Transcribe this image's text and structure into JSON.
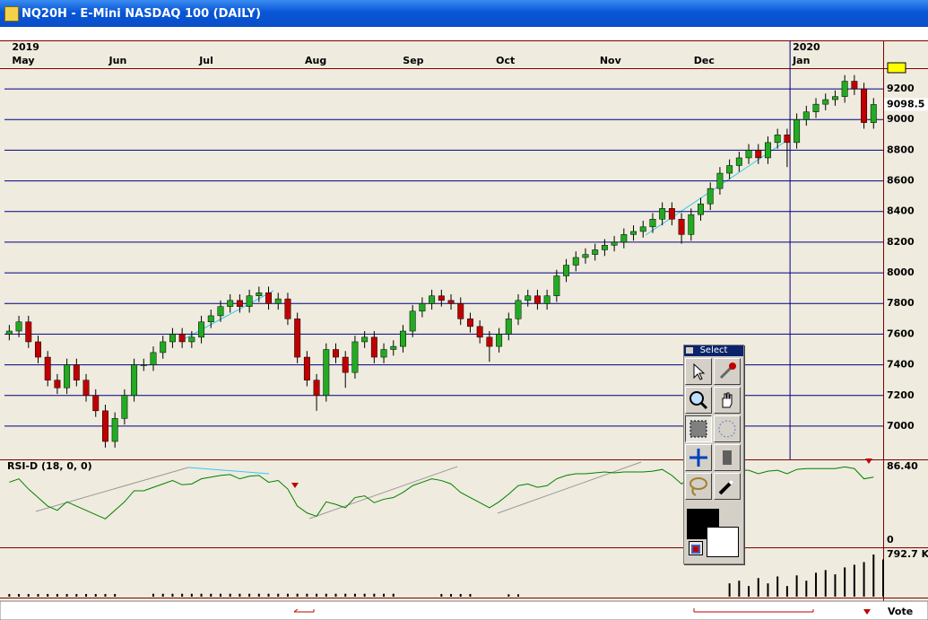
{
  "window": {
    "title": "NQ20H - E-Mini NASDAQ 100 (DAILY)"
  },
  "toolbox": {
    "title": "Select"
  },
  "status_bar": {
    "label": "Vote"
  },
  "chart_data": [
    {
      "type": "candlestick",
      "up_color": "#22aa22",
      "down_color": "#c00000",
      "grid": true,
      "grid_color": "#000080",
      "xlim": [
        -0.5,
        91
      ],
      "xticks": [
        {
          "value": 0,
          "label": "May"
        },
        {
          "value": 10.1,
          "label": "Jun"
        },
        {
          "value": 19.5,
          "label": "Jul"
        },
        {
          "value": 30.5,
          "label": "Aug"
        },
        {
          "value": 40.7,
          "label": "Sep"
        },
        {
          "value": 50.4,
          "label": "Oct"
        },
        {
          "value": 61.2,
          "label": "Nov"
        },
        {
          "value": 71,
          "label": "Dec"
        },
        {
          "value": 81.3,
          "label": "Jan"
        }
      ],
      "year_ticks": [
        {
          "value": 0,
          "label": "2019"
        },
        {
          "value": 81.3,
          "label": "2020"
        }
      ],
      "ylim": [
        6783,
        9335
      ],
      "yticks": [
        7000,
        7200,
        7400,
        7600,
        7800,
        8000,
        8200,
        8400,
        8600,
        8800,
        9000,
        9200
      ],
      "open": [
        7600,
        7620,
        7680,
        7550,
        7450,
        7300,
        7250,
        7400,
        7300,
        7200,
        7100,
        6900,
        7050,
        7200,
        7400,
        7400,
        7480,
        7550,
        7600,
        7550,
        7580,
        7680,
        7720,
        7780,
        7820,
        7780,
        7850,
        7870,
        7800,
        7830,
        7700,
        7450,
        7300,
        7200,
        7500,
        7450,
        7350,
        7550,
        7580,
        7450,
        7500,
        7520,
        7620,
        7750,
        7800,
        7850,
        7820,
        7800,
        7700,
        7650,
        7580,
        7520,
        7600,
        7700,
        7820,
        7850,
        7800,
        7850,
        7980,
        8050,
        8100,
        8120,
        8150,
        8180,
        8200,
        8250,
        8270,
        8300,
        8350,
        8420,
        8350,
        8250,
        8380,
        8450,
        8550,
        8650,
        8700,
        8750,
        8800,
        8750,
        8850,
        8900,
        8850,
        9000,
        9050,
        9100,
        9130,
        9150,
        9250,
        9200,
        8980
      ],
      "high": [
        7660,
        7720,
        7720,
        7590,
        7490,
        7340,
        7440,
        7440,
        7340,
        7240,
        7140,
        7090,
        7240,
        7440,
        7440,
        7520,
        7590,
        7640,
        7640,
        7620,
        7720,
        7760,
        7820,
        7860,
        7860,
        7890,
        7910,
        7910,
        7870,
        7870,
        7740,
        7490,
        7340,
        7540,
        7540,
        7490,
        7590,
        7620,
        7620,
        7540,
        7560,
        7660,
        7790,
        7840,
        7890,
        7890,
        7860,
        7840,
        7740,
        7690,
        7620,
        7640,
        7740,
        7860,
        7890,
        7890,
        7890,
        8020,
        8090,
        8140,
        8160,
        8190,
        8220,
        8240,
        8290,
        8310,
        8340,
        8390,
        8460,
        8460,
        8390,
        8420,
        8490,
        8590,
        8690,
        8740,
        8790,
        8840,
        8840,
        8890,
        8940,
        8940,
        9040,
        9090,
        9140,
        9170,
        9190,
        9290,
        9290,
        9240,
        9140
      ],
      "low": [
        7560,
        7580,
        7510,
        7410,
        7260,
        7210,
        7210,
        7260,
        7160,
        7060,
        6860,
        6860,
        7010,
        7160,
        7360,
        7360,
        7440,
        7510,
        7510,
        7510,
        7540,
        7640,
        7680,
        7740,
        7740,
        7740,
        7810,
        7760,
        7760,
        7660,
        7410,
        7260,
        7100,
        7160,
        7410,
        7250,
        7310,
        7510,
        7410,
        7410,
        7460,
        7480,
        7580,
        7710,
        7760,
        7780,
        7760,
        7660,
        7610,
        7540,
        7420,
        7480,
        7560,
        7660,
        7780,
        7760,
        7760,
        7810,
        7940,
        8010,
        8060,
        8080,
        8110,
        8140,
        8160,
        8210,
        8230,
        8260,
        8310,
        8310,
        8190,
        8210,
        8340,
        8410,
        8510,
        8610,
        8660,
        8710,
        8710,
        8710,
        8810,
        8690,
        8810,
        8960,
        9010,
        9060,
        9090,
        9110,
        9160,
        8940,
        8940
      ],
      "close": [
        7620,
        7680,
        7550,
        7450,
        7300,
        7250,
        7400,
        7300,
        7200,
        7100,
        6900,
        7050,
        7200,
        7400,
        7400,
        7480,
        7550,
        7600,
        7550,
        7580,
        7680,
        7720,
        7780,
        7820,
        7780,
        7850,
        7870,
        7800,
        7830,
        7700,
        7450,
        7300,
        7200,
        7500,
        7450,
        7350,
        7550,
        7580,
        7450,
        7500,
        7520,
        7620,
        7750,
        7800,
        7850,
        7820,
        7800,
        7700,
        7650,
        7580,
        7520,
        7600,
        7700,
        7820,
        7850,
        7800,
        7850,
        7980,
        8050,
        8100,
        8120,
        8150,
        8180,
        8200,
        8250,
        8270,
        8300,
        8350,
        8420,
        8350,
        8250,
        8380,
        8450,
        8550,
        8650,
        8700,
        8750,
        8800,
        8750,
        8850,
        8900,
        8850,
        9000,
        9050,
        9100,
        9130,
        9150,
        9250,
        9200,
        8980,
        9098.5
      ]
    },
    {
      "type": "line",
      "title": "RSI-D (18, 0, 0)",
      "color": "#008000",
      "xlim": [
        -0.5,
        91
      ],
      "ylim": [
        -8.4,
        94.8
      ],
      "yticks": [
        0,
        {
          "value": 86.4,
          "label": "86.40"
        }
      ],
      "values": [
        68,
        72,
        60,
        50,
        40,
        35,
        45,
        40,
        35,
        30,
        25,
        35,
        45,
        58,
        58,
        62,
        66,
        70,
        65,
        66,
        72,
        74,
        76,
        77,
        72,
        75,
        76,
        68,
        70,
        60,
        40,
        32,
        28,
        45,
        42,
        38,
        50,
        52,
        44,
        48,
        50,
        56,
        64,
        68,
        72,
        70,
        66,
        56,
        50,
        44,
        38,
        45,
        54,
        64,
        66,
        62,
        64,
        72,
        76,
        78,
        78,
        79,
        80,
        79,
        80,
        80,
        80,
        81,
        83,
        76,
        66,
        74,
        78,
        80,
        82,
        82,
        82,
        82,
        78,
        81,
        82,
        78,
        83,
        84,
        84,
        84,
        84,
        86,
        84,
        72,
        74
      ]
    },
    {
      "type": "volume",
      "color": "#000000",
      "xlim": [
        -0.5,
        91
      ],
      "ylim": [
        0,
        927.6
      ],
      "yticks": [
        {
          "value": 792.7,
          "label": "792.7 K"
        }
      ],
      "values": [
        50,
        50,
        50,
        50,
        50,
        50,
        50,
        50,
        50,
        50,
        50,
        50,
        null,
        null,
        null,
        55,
        55,
        55,
        55,
        55,
        55,
        55,
        55,
        55,
        55,
        55,
        55,
        55,
        55,
        55,
        55,
        55,
        55,
        55,
        55,
        55,
        55,
        55,
        55,
        55,
        55,
        null,
        null,
        null,
        null,
        50,
        50,
        50,
        50,
        null,
        null,
        null,
        45,
        45,
        null,
        null,
        null,
        null,
        null,
        null,
        null,
        null,
        null,
        null,
        null,
        null,
        null,
        null,
        null,
        null,
        null,
        null,
        null,
        null,
        null,
        250,
        300,
        200,
        350,
        250,
        380,
        200,
        400,
        300,
        450,
        500,
        420,
        550,
        600,
        650,
        792.7,
        700
      ]
    }
  ]
}
